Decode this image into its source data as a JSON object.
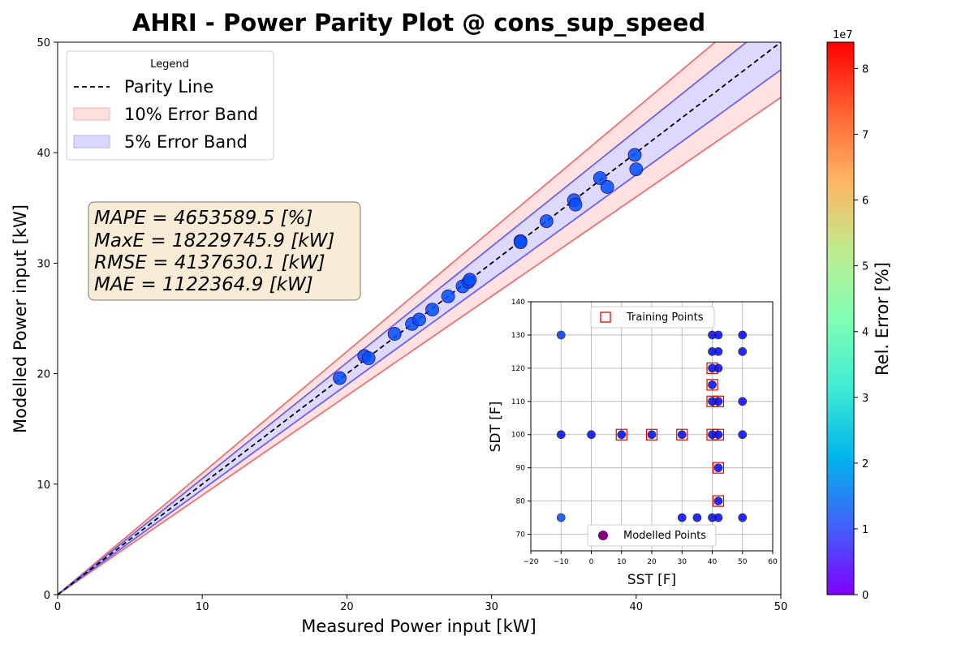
{
  "chart_data": [
    {
      "type": "scatter",
      "title": "AHRI - Power Parity Plot @ cons_sup_speed",
      "xlabel": "Measured Power input [kW]",
      "ylabel": "Modelled Power input [kW]",
      "xlim": [
        0,
        50
      ],
      "ylim": [
        0,
        50
      ],
      "xticks": [
        "0",
        "10",
        "20",
        "30",
        "40",
        "50"
      ],
      "yticks": [
        "0",
        "10",
        "20",
        "30",
        "40",
        "50"
      ],
      "grid": false,
      "legend": {
        "title": "Legend",
        "placement": "top-left",
        "entries": [
          "Parity Line",
          "10% Error Band",
          "5% Error Band"
        ]
      },
      "bands": [
        {
          "name": "10% Error Band",
          "pct": 10,
          "fill": "#ffdede",
          "edge": "#f07070"
        },
        {
          "name": "5% Error Band",
          "pct": 5,
          "fill": "#d8d8ff",
          "edge": "#6f5ff0"
        }
      ],
      "metrics": [
        "MAPE = 4653589.5 [%]",
        "MaxE = 18229745.9 [kW]",
        "RMSE = 4137630.1 [kW]",
        "MAE = 1122364.9 [kW]"
      ],
      "points": [
        [
          19.5,
          19.6
        ],
        [
          21.2,
          21.6
        ],
        [
          21.5,
          21.4
        ],
        [
          23.3,
          23.6
        ],
        [
          24.5,
          24.5
        ],
        [
          25.0,
          24.9
        ],
        [
          25.9,
          25.8
        ],
        [
          27.0,
          27.0
        ],
        [
          28.0,
          27.9
        ],
        [
          28.4,
          28.3
        ],
        [
          28.5,
          28.5
        ],
        [
          32.0,
          32.0
        ],
        [
          32.0,
          31.9
        ],
        [
          33.8,
          33.8
        ],
        [
          35.7,
          35.7
        ],
        [
          35.8,
          35.3
        ],
        [
          37.5,
          37.7
        ],
        [
          38.0,
          36.9
        ],
        [
          39.9,
          39.8
        ],
        [
          40.0,
          38.5
        ]
      ]
    },
    {
      "type": "scatter",
      "xlabel": "SST [F]",
      "ylabel": "SDT [F]",
      "xlim": [
        -20,
        60
      ],
      "ylim": [
        65,
        140
      ],
      "xticks": [
        "−20",
        "−10",
        "0",
        "10",
        "20",
        "30",
        "40",
        "50",
        "60"
      ],
      "yticks": [
        "70",
        "80",
        "90",
        "100",
        "110",
        "120",
        "130",
        "140"
      ],
      "grid": true,
      "legend_entries": [
        "Training Points",
        "Modelled Points"
      ],
      "training_points": [
        [
          10,
          100
        ],
        [
          20,
          100
        ],
        [
          30,
          100
        ],
        [
          40,
          100
        ],
        [
          40,
          110
        ],
        [
          40,
          115
        ],
        [
          40,
          120
        ],
        [
          42,
          110
        ],
        [
          42,
          100
        ],
        [
          42,
          90
        ],
        [
          42,
          80
        ]
      ],
      "modelled_points": [
        {
          "x": -10,
          "y": 130,
          "err": 5300000.0
        },
        {
          "x": -10,
          "y": 100,
          "err": 500000.0
        },
        {
          "x": -10,
          "y": 75,
          "err": 7900000.0
        },
        {
          "x": 0,
          "y": 100,
          "err": 500000.0
        },
        {
          "x": 10,
          "y": 100,
          "err": 500000.0
        },
        {
          "x": 20,
          "y": 100,
          "err": 500000.0
        },
        {
          "x": 30,
          "y": 100,
          "err": 500000.0
        },
        {
          "x": 30,
          "y": 75,
          "err": 500000.0
        },
        {
          "x": 35,
          "y": 75,
          "err": 500000.0
        },
        {
          "x": 40,
          "y": 75,
          "err": 500000.0
        },
        {
          "x": 42,
          "y": 75,
          "err": 500000.0
        },
        {
          "x": 50,
          "y": 75,
          "err": 300000.0
        },
        {
          "x": 40,
          "y": 130,
          "err": 500000.0
        },
        {
          "x": 42,
          "y": 130,
          "err": 500000.0
        },
        {
          "x": 50,
          "y": 130,
          "err": 300000.0
        },
        {
          "x": 40,
          "y": 125,
          "err": 500000.0
        },
        {
          "x": 42,
          "y": 125,
          "err": 500000.0
        },
        {
          "x": 50,
          "y": 125,
          "err": 500000.0
        },
        {
          "x": 40,
          "y": 120,
          "err": 500000.0
        },
        {
          "x": 42,
          "y": 120,
          "err": 500000.0
        },
        {
          "x": 40,
          "y": 115,
          "err": 500000.0
        },
        {
          "x": 40,
          "y": 110,
          "err": 500000.0
        },
        {
          "x": 42,
          "y": 110,
          "err": 500000.0
        },
        {
          "x": 50,
          "y": 110,
          "err": 500000.0
        },
        {
          "x": 40,
          "y": 100,
          "err": 500000.0
        },
        {
          "x": 42,
          "y": 100,
          "err": 200000.0
        },
        {
          "x": 50,
          "y": 100,
          "err": 500000.0
        },
        {
          "x": 42,
          "y": 90,
          "err": 500000.0
        },
        {
          "x": 42,
          "y": 80,
          "err": 500000.0
        }
      ]
    }
  ],
  "colorbar": {
    "label": "Rel. Error [%]",
    "exponent": "1e7",
    "range": [
      0,
      84000000
    ],
    "ticks": [
      "0",
      "1",
      "2",
      "3",
      "4",
      "5",
      "6",
      "7",
      "8"
    ]
  },
  "colors": {
    "parity_line": "#000000",
    "metrics_box_fill": "#f8ecd6",
    "training_marker": "#e00000",
    "modelled_legend_marker": "#800080"
  }
}
